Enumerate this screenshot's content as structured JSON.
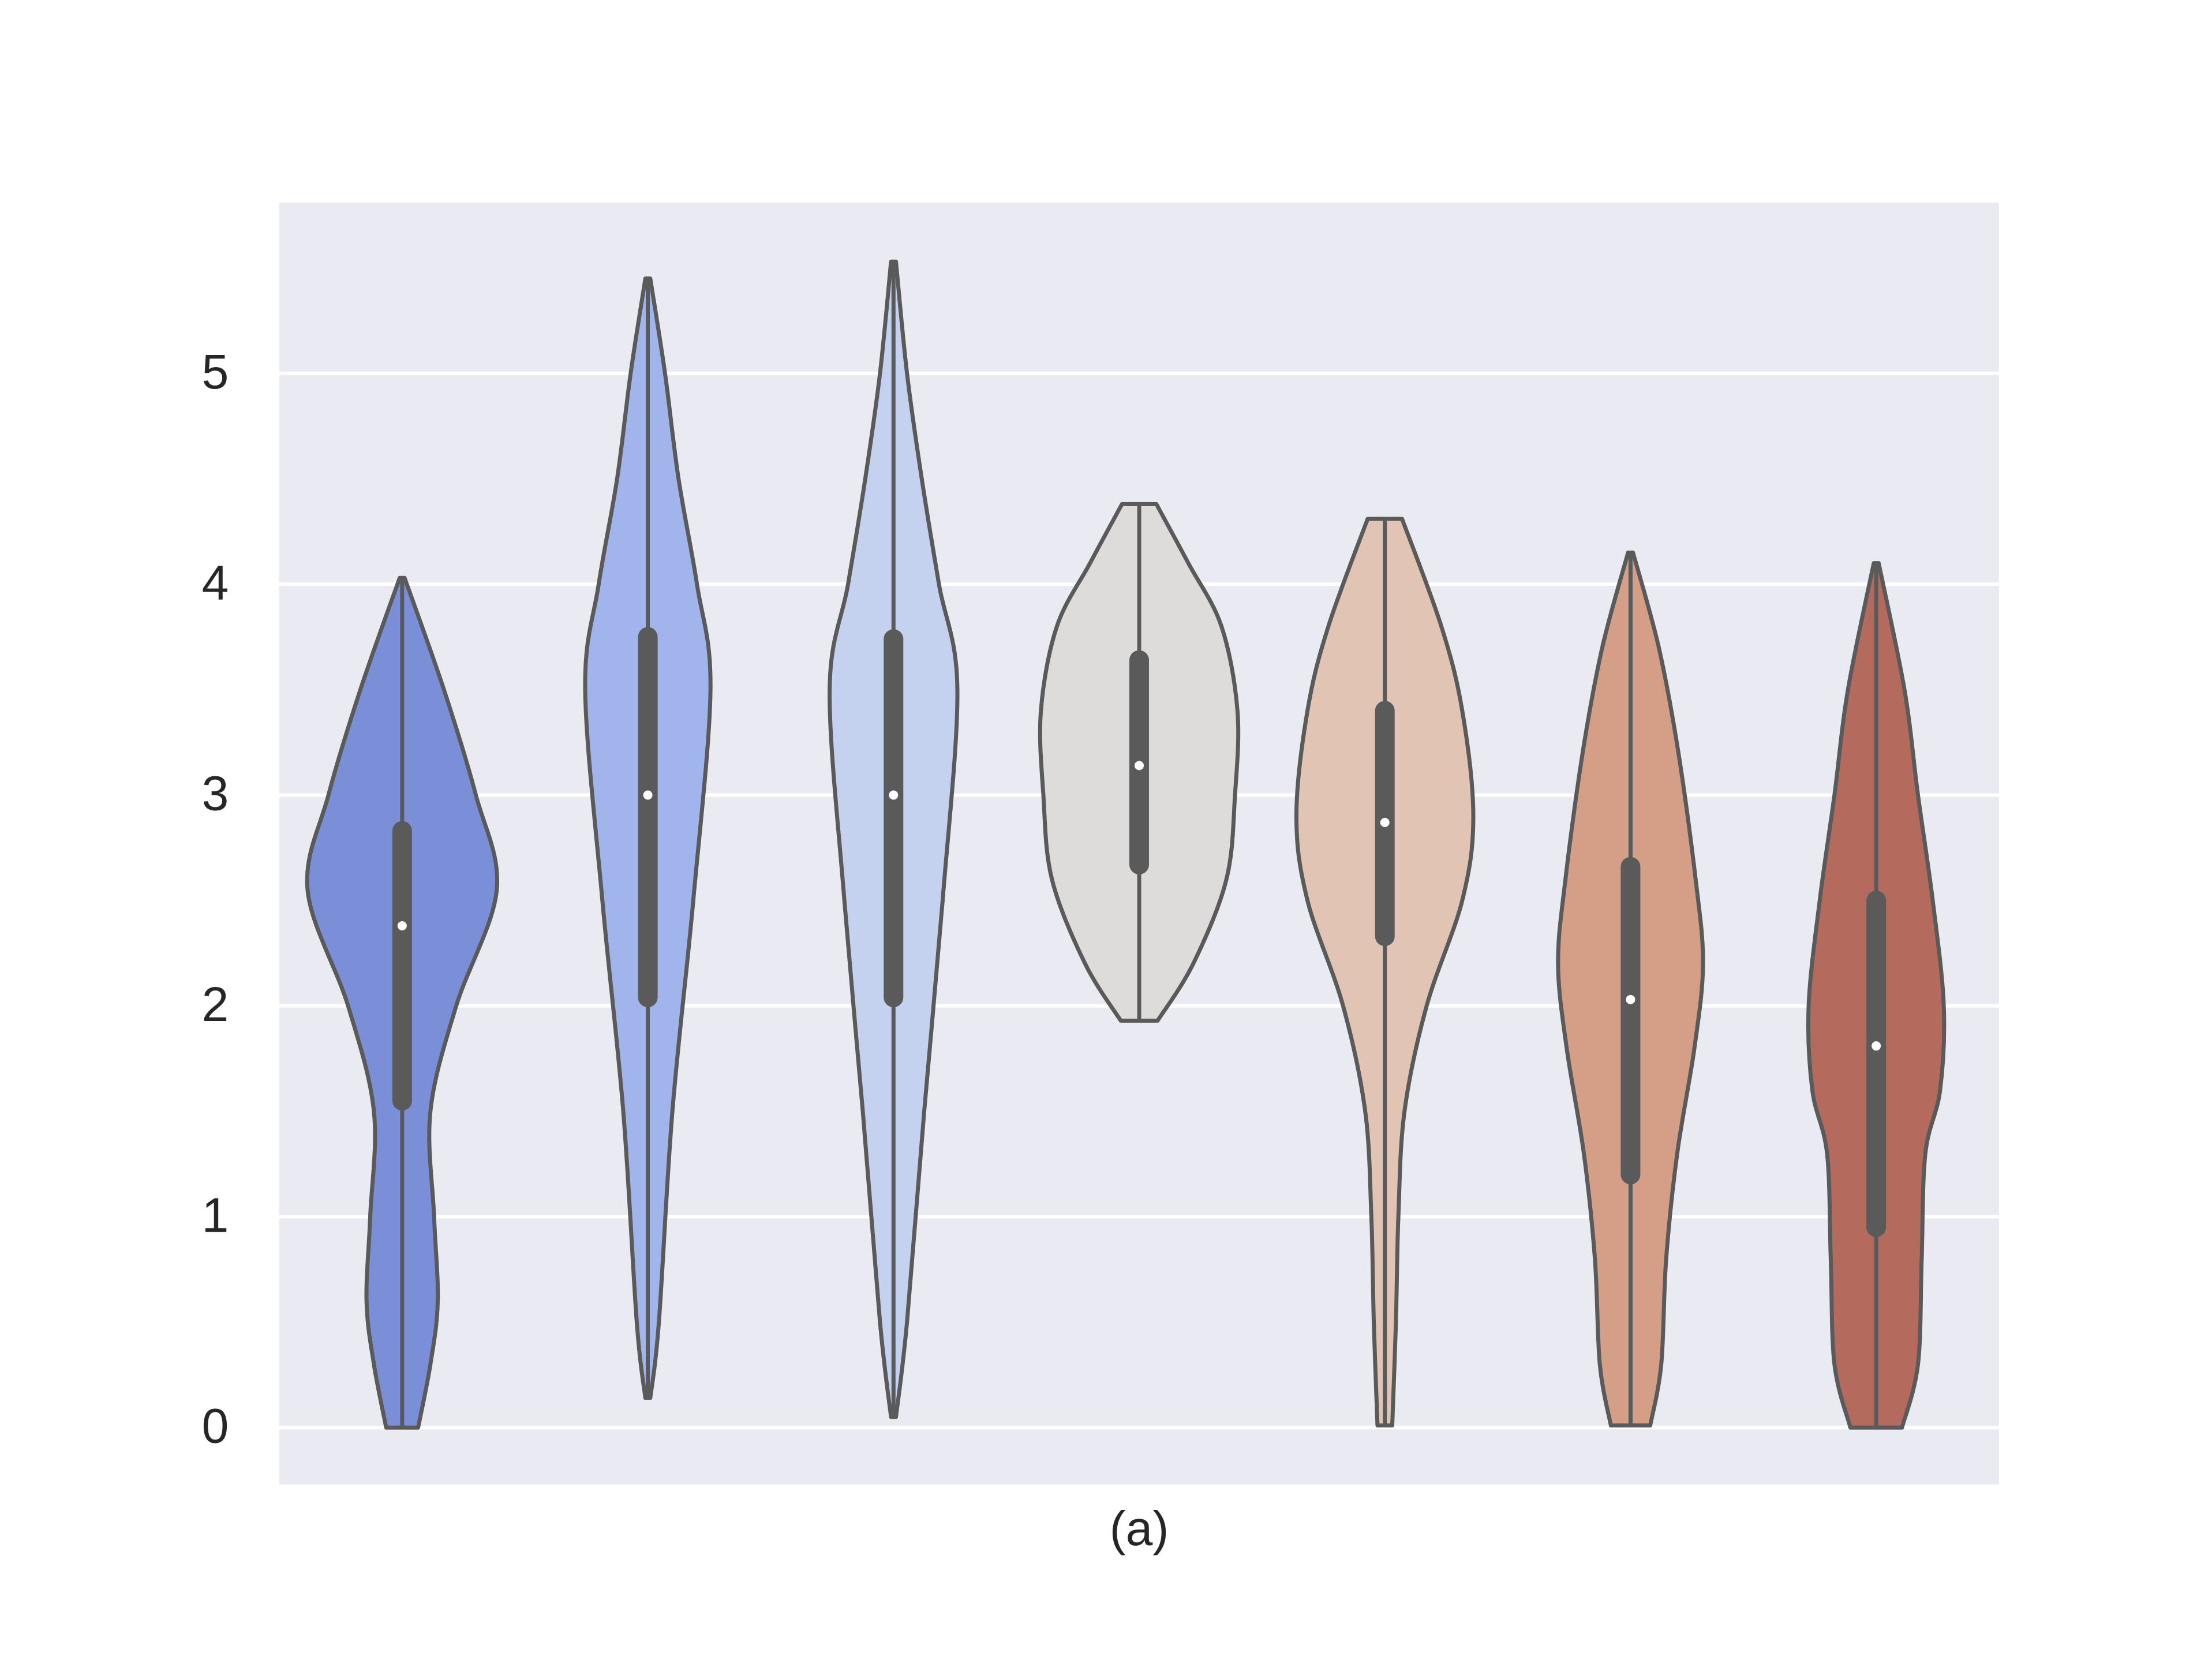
{
  "chart_data": {
    "type": "violin",
    "xlabel": "(a)",
    "ylim": [
      -0.27,
      5.81
    ],
    "yticks": [
      0,
      1,
      2,
      3,
      4,
      5
    ],
    "grid": true,
    "background": "#eaeaf2",
    "line_color": "#5a5a5a",
    "series": [
      {
        "color": "#7b8ed8",
        "min": 0,
        "q1": 1.55,
        "median": 2.38,
        "q3": 2.83,
        "max": 4.03,
        "density_y": [
          0,
          0.3,
          0.6,
          1.0,
          1.5,
          2.0,
          2.55,
          3.0,
          3.5,
          4.03
        ],
        "density": [
          0.13,
          0.23,
          0.29,
          0.26,
          0.23,
          0.44,
          0.77,
          0.6,
          0.34,
          0.02
        ]
      },
      {
        "color": "#a1b4ec",
        "min": 0.14,
        "q1": 2.04,
        "median": 3.0,
        "q3": 3.75,
        "max": 5.45,
        "density_y": [
          0.14,
          0.5,
          1.5,
          2.5,
          3.5,
          4.0,
          4.5,
          5.0,
          5.45
        ],
        "density": [
          0.02,
          0.09,
          0.2,
          0.37,
          0.51,
          0.4,
          0.25,
          0.14,
          0.02
        ]
      },
      {
        "color": "#c5d2ef",
        "min": 0.05,
        "q1": 2.04,
        "median": 3.0,
        "q3": 3.74,
        "max": 5.53,
        "density_y": [
          0.05,
          0.5,
          1.5,
          2.5,
          3.5,
          4.0,
          4.5,
          5.0,
          5.53
        ],
        "density": [
          0.02,
          0.11,
          0.25,
          0.4,
          0.52,
          0.37,
          0.23,
          0.11,
          0.02
        ]
      },
      {
        "color": "#dddcdb",
        "min": 1.93,
        "q1": 2.67,
        "median": 3.14,
        "q3": 3.64,
        "max": 4.38,
        "density_y": [
          1.93,
          2.2,
          2.6,
          3.0,
          3.4,
          3.8,
          4.1,
          4.38
        ],
        "density": [
          0.15,
          0.44,
          0.71,
          0.78,
          0.8,
          0.67,
          0.4,
          0.14
        ]
      },
      {
        "color": "#e1c4b4",
        "min": 0.01,
        "q1": 2.33,
        "median": 2.87,
        "q3": 3.4,
        "max": 4.31,
        "density_y": [
          0.01,
          0.5,
          1.0,
          1.5,
          2.0,
          2.5,
          2.9,
          3.4,
          3.8,
          4.31
        ],
        "density": [
          0.06,
          0.09,
          0.11,
          0.16,
          0.34,
          0.63,
          0.72,
          0.63,
          0.46,
          0.14
        ]
      },
      {
        "color": "#d59f87",
        "min": 0.01,
        "q1": 1.2,
        "median": 2.03,
        "q3": 2.66,
        "max": 4.15,
        "density_y": [
          0.01,
          0.3,
          0.8,
          1.3,
          1.8,
          2.2,
          2.6,
          3.2,
          3.7,
          4.15
        ],
        "density": [
          0.16,
          0.25,
          0.29,
          0.38,
          0.52,
          0.59,
          0.53,
          0.39,
          0.23,
          0.02
        ]
      },
      {
        "color": "#b46b5e",
        "min": 0,
        "q1": 0.95,
        "median": 1.81,
        "q3": 2.5,
        "max": 4.1,
        "density_y": [
          0,
          0.3,
          0.8,
          1.3,
          1.6,
          2.0,
          2.5,
          3.0,
          3.5,
          4.1
        ],
        "density": [
          0.21,
          0.34,
          0.37,
          0.4,
          0.52,
          0.55,
          0.46,
          0.34,
          0.23,
          0.02
        ]
      }
    ]
  }
}
